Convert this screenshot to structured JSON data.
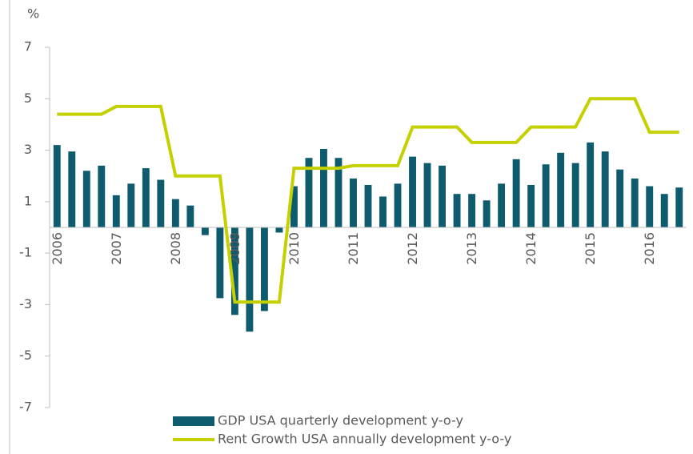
{
  "chart_data": {
    "type": "bar_line",
    "y_unit": "%",
    "categories": [
      "2006",
      null,
      null,
      null,
      "2007",
      null,
      null,
      null,
      "2008",
      null,
      null,
      null,
      "2009",
      null,
      null,
      null,
      "2010",
      null,
      null,
      null,
      "2011",
      null,
      null,
      null,
      "2012",
      null,
      null,
      null,
      "2013",
      null,
      null,
      null,
      "2014",
      null,
      null,
      null,
      "2015",
      null,
      null,
      null,
      "2016",
      null,
      null
    ],
    "series": [
      {
        "name": "GDP USA quarterly development y-o-y",
        "type": "bar",
        "color": "#0f5b6e",
        "values": [
          3.2,
          2.95,
          2.2,
          2.4,
          1.25,
          1.7,
          2.3,
          1.85,
          1.1,
          0.85,
          -0.3,
          -2.75,
          -3.4,
          -4.05,
          -3.25,
          -0.2,
          1.6,
          2.7,
          3.05,
          2.7,
          1.9,
          1.65,
          1.2,
          1.7,
          2.75,
          2.5,
          2.4,
          1.3,
          1.3,
          1.05,
          1.7,
          2.65,
          1.65,
          2.45,
          2.9,
          2.5,
          3.3,
          2.95,
          2.25,
          1.9,
          1.6,
          1.3,
          1.55
        ]
      },
      {
        "name": "Rent Growth USA annually development y-o-y",
        "type": "line",
        "color": "#c4d000",
        "values": [
          4.4,
          4.4,
          4.4,
          4.4,
          4.7,
          4.7,
          4.7,
          4.7,
          2.0,
          2.0,
          2.0,
          2.0,
          -2.9,
          -2.9,
          -2.9,
          -2.9,
          2.3,
          2.3,
          2.3,
          2.3,
          2.4,
          2.4,
          2.4,
          2.4,
          3.9,
          3.9,
          3.9,
          3.9,
          3.3,
          3.3,
          3.3,
          3.3,
          3.9,
          3.9,
          3.9,
          3.9,
          5.0,
          5.0,
          5.0,
          5.0,
          3.7,
          3.7,
          3.7
        ]
      }
    ],
    "ylim": [
      -7,
      7
    ],
    "yticks": [
      -7,
      -5,
      -3,
      -1,
      1,
      3,
      5,
      7
    ],
    "legend": "bottom"
  }
}
